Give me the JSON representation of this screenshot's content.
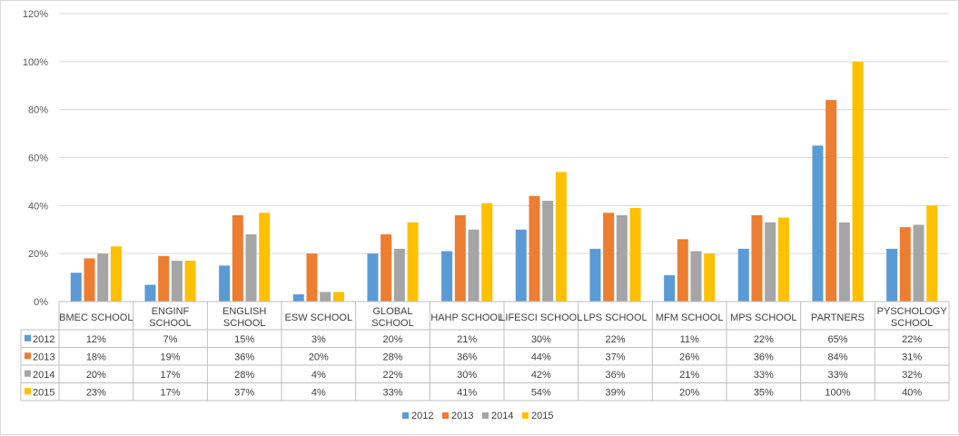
{
  "chart_data": {
    "type": "bar",
    "title": "",
    "xlabel": "",
    "ylabel": "",
    "ylim": [
      0,
      120
    ],
    "y_ticks": [
      "0%",
      "20%",
      "40%",
      "60%",
      "80%",
      "100%",
      "120%"
    ],
    "y_tick_values": [
      0,
      20,
      40,
      60,
      80,
      100,
      120
    ],
    "grid": true,
    "legend_position": "bottom",
    "data_table": true,
    "categories": [
      [
        "BMEC SCHOOL"
      ],
      [
        "ENGINF",
        "SCHOOL"
      ],
      [
        "ENGLISH",
        "SCHOOL"
      ],
      [
        "ESW SCHOOL"
      ],
      [
        "GLOBAL",
        "SCHOOL"
      ],
      [
        "HAHP SCHOOL"
      ],
      [
        "LIFESCI SCHOOL"
      ],
      [
        "LPS SCHOOL"
      ],
      [
        "MFM SCHOOL"
      ],
      [
        "MPS SCHOOL"
      ],
      [
        "PARTNERS"
      ],
      [
        "PYSCHOLOGY",
        "SCHOOL"
      ]
    ],
    "series": [
      {
        "name": "2012",
        "color": "#5b9bd5",
        "values": [
          12,
          7,
          15,
          3,
          20,
          21,
          30,
          22,
          11,
          22,
          65,
          22
        ],
        "labels": [
          "12%",
          "7%",
          "15%",
          "3%",
          "20%",
          "21%",
          "30%",
          "22%",
          "11%",
          "22%",
          "65%",
          "22%"
        ]
      },
      {
        "name": "2013",
        "color": "#ed7d31",
        "values": [
          18,
          19,
          36,
          20,
          28,
          36,
          44,
          37,
          26,
          36,
          84,
          31
        ],
        "labels": [
          "18%",
          "19%",
          "36%",
          "20%",
          "28%",
          "36%",
          "44%",
          "37%",
          "26%",
          "36%",
          "84%",
          "31%"
        ]
      },
      {
        "name": "2014",
        "color": "#a5a5a5",
        "values": [
          20,
          17,
          28,
          4,
          22,
          30,
          42,
          36,
          21,
          33,
          33,
          32
        ],
        "labels": [
          "20%",
          "17%",
          "28%",
          "4%",
          "22%",
          "30%",
          "42%",
          "36%",
          "21%",
          "33%",
          "33%",
          "32%"
        ]
      },
      {
        "name": "2015",
        "color": "#ffc000",
        "values": [
          23,
          17,
          37,
          4,
          33,
          41,
          54,
          39,
          20,
          35,
          100,
          40
        ],
        "labels": [
          "23%",
          "17%",
          "37%",
          "4%",
          "33%",
          "41%",
          "54%",
          "39%",
          "20%",
          "35%",
          "100%",
          "40%"
        ]
      }
    ]
  },
  "colors": {
    "grid": "#d9d9d9",
    "table_border": "#bfbfbf",
    "text": "#595959"
  }
}
